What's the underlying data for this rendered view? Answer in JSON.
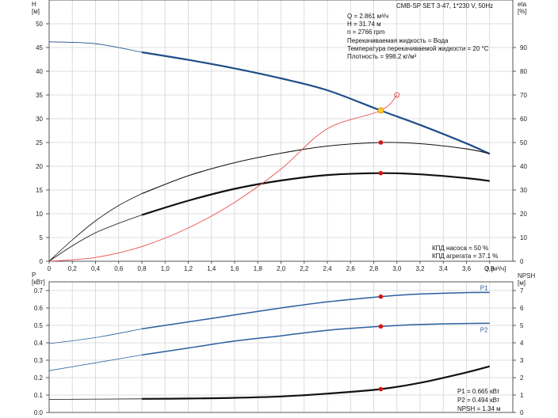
{
  "header": {
    "pump_title": "CMB-SP SET 3-47, 1*230 V, 50Hz"
  },
  "info_top": [
    "Q = 2.861 м³/ч",
    "H = 31.74 м",
    "n = 2766 rpm",
    "Перекачиваемая жидкость = Вода",
    "Температура перекачиваемой жидкости = 20 °C",
    "Плотность = 998.2 кг/м³"
  ],
  "efficiency_info": [
    "КПД насоса = 50 %",
    "КПД агрегата = 37.1 %"
  ],
  "power_info": [
    "P1 = 0.665 кВт",
    "P2 = 0.494 кВт",
    "NPSH = 1.34 м"
  ],
  "colors": {
    "head": "#1f4e8a",
    "power": "#2a5f9e",
    "system": "#e85050",
    "duty_point": "#ffcc33",
    "marker": "#dd1111",
    "grid": "#d4d4d4"
  },
  "chart_data": [
    {
      "type": "line",
      "x_ticks": [
        "0",
        "0,2",
        "0,4",
        "0,6",
        "0,8",
        "1,0",
        "1,2",
        "1,4",
        "1,6",
        "1,8",
        "2,0",
        "2,2",
        "2,4",
        "2,6",
        "2,8",
        "3,0",
        "3,2",
        "3,4",
        "3,6",
        "3,8"
      ],
      "xlabel": "Q [м³/ч]",
      "xlim": [
        0,
        4.0
      ],
      "ylabel_left": [
        "H",
        "[м]"
      ],
      "ylim_left": [
        0,
        55
      ],
      "y_ticks_left": [
        "0",
        "5",
        "10",
        "15",
        "20",
        "25",
        "30",
        "35",
        "40",
        "45",
        "50"
      ],
      "ylabel_right": [
        "eta",
        "[%]"
      ],
      "ylim_right": [
        0,
        110
      ],
      "y_ticks_right": [
        "0",
        "10",
        "20",
        "30",
        "40",
        "50",
        "60",
        "70",
        "80",
        "90"
      ],
      "grid": true,
      "series": [
        {
          "axis": "left",
          "role": "head",
          "points": [
            [
              0,
              46.2
            ],
            [
              0.4,
              45.8
            ],
            [
              0.8,
              44.0
            ],
            [
              1.2,
              42.4
            ],
            [
              1.6,
              40.6
            ],
            [
              2.0,
              38.5
            ],
            [
              2.4,
              36.0
            ],
            [
              2.861,
              31.74
            ],
            [
              3.2,
              28.7
            ],
            [
              3.6,
              24.8
            ],
            [
              3.8,
              22.6
            ]
          ]
        },
        {
          "axis": "right",
          "role": "pump-efficiency",
          "points": [
            [
              0,
              0
            ],
            [
              0.2,
              9
            ],
            [
              0.4,
              17
            ],
            [
              0.6,
              23.5
            ],
            [
              0.8,
              28.5
            ],
            [
              1.2,
              36
            ],
            [
              1.6,
              41.5
            ],
            [
              2.0,
              45.5
            ],
            [
              2.4,
              48.5
            ],
            [
              2.861,
              50
            ],
            [
              3.2,
              49.5
            ],
            [
              3.6,
              47.3
            ],
            [
              3.8,
              45.3
            ]
          ]
        },
        {
          "axis": "right",
          "role": "unit-efficiency",
          "points": [
            [
              0,
              0
            ],
            [
              0.2,
              6.5
            ],
            [
              0.4,
              12
            ],
            [
              0.6,
              16
            ],
            [
              0.8,
              19.5
            ],
            [
              1.2,
              25.5
            ],
            [
              1.6,
              30.5
            ],
            [
              2.0,
              34
            ],
            [
              2.4,
              36.3
            ],
            [
              2.861,
              37.1
            ],
            [
              3.2,
              36.6
            ],
            [
              3.6,
              35
            ],
            [
              3.8,
              33.8
            ]
          ]
        },
        {
          "axis": "left",
          "role": "system-curve",
          "points": [
            [
              0,
              0
            ],
            [
              0.4,
              0.8
            ],
            [
              0.8,
              3.1
            ],
            [
              1.2,
              7.0
            ],
            [
              1.6,
              12.4
            ],
            [
              2.0,
              19.4
            ],
            [
              2.4,
              27.9
            ],
            [
              2.861,
              31.74
            ],
            [
              3.0,
              35.0
            ]
          ]
        }
      ],
      "markers": [
        {
          "axis": "left",
          "x": 2.861,
          "y": 31.74,
          "role": "duty-point"
        },
        {
          "axis": "right",
          "x": 2.861,
          "y": 50.0
        },
        {
          "axis": "right",
          "x": 2.861,
          "y": 37.1
        }
      ],
      "open_marker": {
        "axis": "left",
        "x": 3.0,
        "y": 35.0
      }
    },
    {
      "type": "line",
      "xlim": [
        0,
        4.0
      ],
      "ylabel_left": [
        "P",
        "[кВт]"
      ],
      "ylim_left": [
        0,
        0.75
      ],
      "y_ticks_left": [
        "0.0",
        "0.1",
        "0.2",
        "0.3",
        "0.4",
        "0.5",
        "0.6",
        "0.7"
      ],
      "ylabel_right": [
        "NPSH",
        "[м]"
      ],
      "ylim_right": [
        0,
        7.5
      ],
      "y_ticks_right": [
        "0",
        "1",
        "2",
        "3",
        "4",
        "5",
        "6",
        "7"
      ],
      "grid": true,
      "series": [
        {
          "name": "P1",
          "axis": "left",
          "points": [
            [
              0,
              0.395
            ],
            [
              0.4,
              0.43
            ],
            [
              0.8,
              0.48
            ],
            [
              1.2,
              0.52
            ],
            [
              1.6,
              0.56
            ],
            [
              2.0,
              0.6
            ],
            [
              2.4,
              0.635
            ],
            [
              2.861,
              0.665
            ],
            [
              3.2,
              0.68
            ],
            [
              3.6,
              0.688
            ],
            [
              3.8,
              0.689
            ]
          ]
        },
        {
          "name": "P2",
          "axis": "left",
          "points": [
            [
              0,
              0.24
            ],
            [
              0.4,
              0.285
            ],
            [
              0.8,
              0.33
            ],
            [
              1.2,
              0.37
            ],
            [
              1.6,
              0.41
            ],
            [
              2.0,
              0.44
            ],
            [
              2.4,
              0.472
            ],
            [
              2.861,
              0.494
            ],
            [
              3.2,
              0.505
            ],
            [
              3.6,
              0.511
            ],
            [
              3.8,
              0.512
            ]
          ]
        },
        {
          "axis": "right",
          "role": "npsh",
          "points": [
            [
              0,
              0.75
            ],
            [
              0.8,
              0.78
            ],
            [
              1.2,
              0.8
            ],
            [
              1.6,
              0.84
            ],
            [
              2.0,
              0.92
            ],
            [
              2.4,
              1.08
            ],
            [
              2.861,
              1.34
            ],
            [
              3.2,
              1.7
            ],
            [
              3.6,
              2.3
            ],
            [
              3.8,
              2.65
            ]
          ]
        }
      ],
      "markers": [
        {
          "axis": "left",
          "x": 2.861,
          "y": 0.665
        },
        {
          "axis": "left",
          "x": 2.861,
          "y": 0.494
        },
        {
          "axis": "right",
          "x": 2.861,
          "y": 1.34
        }
      ]
    }
  ]
}
